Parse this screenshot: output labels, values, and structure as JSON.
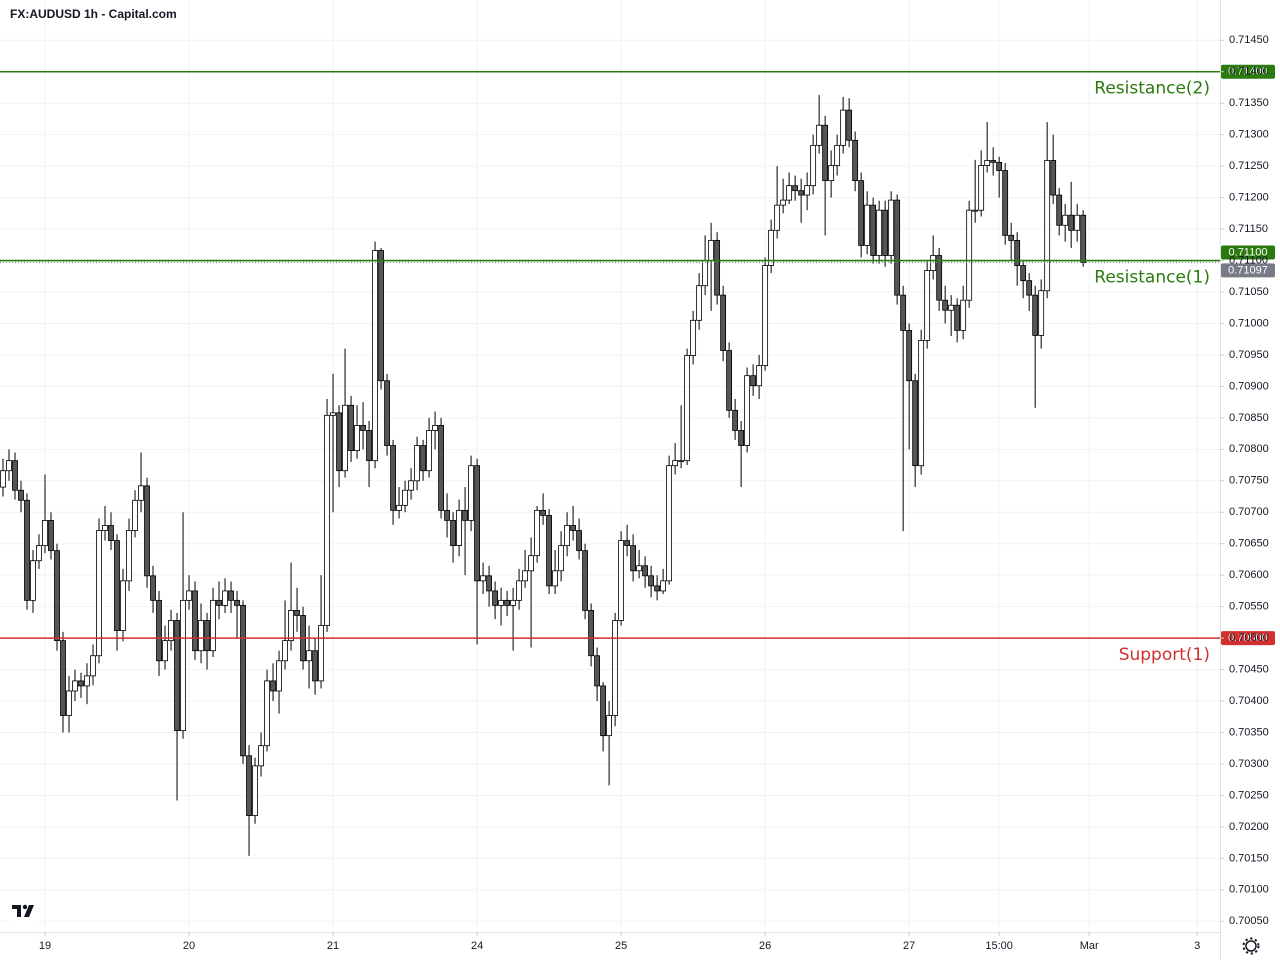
{
  "chart_data": {
    "type": "candlestick",
    "title": "FX:AUDUSD 1h - Capital.com",
    "up_color": "#ffffff",
    "down_color": "#555555",
    "wick_color": "#000000",
    "grid": true,
    "xlim": [
      -0.5,
      202.8
    ],
    "ylim": [
      0.70033,
      0.71514
    ],
    "xticks": [
      {
        "value": 7,
        "label": "19"
      },
      {
        "value": 31,
        "label": "20"
      },
      {
        "value": 55,
        "label": "21"
      },
      {
        "value": 79,
        "label": "24"
      },
      {
        "value": 103,
        "label": "25"
      },
      {
        "value": 127,
        "label": "26"
      },
      {
        "value": 151,
        "label": "27"
      },
      {
        "value": 166,
        "label": "15:00"
      },
      {
        "value": 181,
        "label": "Mar"
      },
      {
        "value": 199,
        "label": "3"
      }
    ],
    "yticks": [
      {
        "value": 0.7005,
        "label": "0.70050"
      },
      {
        "value": 0.701,
        "label": "0.70100"
      },
      {
        "value": 0.7015,
        "label": "0.70150"
      },
      {
        "value": 0.702,
        "label": "0.70200"
      },
      {
        "value": 0.7025,
        "label": "0.70250"
      },
      {
        "value": 0.703,
        "label": "0.70300"
      },
      {
        "value": 0.7035,
        "label": "0.70350"
      },
      {
        "value": 0.704,
        "label": "0.70400"
      },
      {
        "value": 0.7045,
        "label": "0.70450"
      },
      {
        "value": 0.705,
        "label": "0.70500"
      },
      {
        "value": 0.7055,
        "label": "0.70550"
      },
      {
        "value": 0.706,
        "label": "0.70600"
      },
      {
        "value": 0.7065,
        "label": "0.70650"
      },
      {
        "value": 0.707,
        "label": "0.70700"
      },
      {
        "value": 0.7075,
        "label": "0.70750"
      },
      {
        "value": 0.708,
        "label": "0.70800"
      },
      {
        "value": 0.7085,
        "label": "0.70850"
      },
      {
        "value": 0.709,
        "label": "0.70900"
      },
      {
        "value": 0.7095,
        "label": "0.70950"
      },
      {
        "value": 0.71,
        "label": "0.71000"
      },
      {
        "value": 0.7105,
        "label": "0.71050"
      },
      {
        "value": 0.711,
        "label": "0.71100"
      },
      {
        "value": 0.7115,
        "label": "0.71150"
      },
      {
        "value": 0.712,
        "label": "0.71200"
      },
      {
        "value": 0.7125,
        "label": "0.71250"
      },
      {
        "value": 0.713,
        "label": "0.71300"
      },
      {
        "value": 0.7135,
        "label": "0.71350"
      },
      {
        "value": 0.714,
        "label": "0.71400"
      },
      {
        "value": 0.7145,
        "label": "0.71450"
      }
    ],
    "levels": [
      {
        "name": "Resistance(2)",
        "value": 0.714,
        "value_label": "0.71400",
        "color": "#2a7a0e"
      },
      {
        "name": "Resistance(1)",
        "value": 0.711,
        "value_label": "0.71100",
        "color": "#2a7a0e"
      },
      {
        "name": "Support(1)",
        "value": 0.705,
        "value_label": "0.70500",
        "color": "#d32f2f"
      }
    ],
    "last_label": "0.71097",
    "ohlc": [
      [
        0.7074,
        0.70785,
        0.70725,
        0.70766
      ],
      [
        0.70766,
        0.708,
        0.7075,
        0.70782
      ],
      [
        0.70782,
        0.70795,
        0.7072,
        0.70735
      ],
      [
        0.70735,
        0.7075,
        0.707,
        0.70719
      ],
      [
        0.70719,
        0.7073,
        0.70545,
        0.7056
      ],
      [
        0.7056,
        0.7064,
        0.7054,
        0.70623
      ],
      [
        0.70623,
        0.70665,
        0.7061,
        0.70647
      ],
      [
        0.70647,
        0.7076,
        0.70635,
        0.70687
      ],
      [
        0.70687,
        0.707,
        0.70625,
        0.70639
      ],
      [
        0.70639,
        0.7065,
        0.7048,
        0.70496
      ],
      [
        0.70496,
        0.7051,
        0.7035,
        0.70377
      ],
      [
        0.70377,
        0.7044,
        0.7035,
        0.70416
      ],
      [
        0.70416,
        0.7045,
        0.704,
        0.70432
      ],
      [
        0.70432,
        0.70445,
        0.70405,
        0.70424
      ],
      [
        0.70424,
        0.7046,
        0.70395,
        0.7044
      ],
      [
        0.7044,
        0.7049,
        0.70425,
        0.70472
      ],
      [
        0.70472,
        0.7069,
        0.7046,
        0.70671
      ],
      [
        0.70671,
        0.7071,
        0.70655,
        0.70679
      ],
      [
        0.70679,
        0.707,
        0.7064,
        0.70655
      ],
      [
        0.70655,
        0.70665,
        0.7048,
        0.70512
      ],
      [
        0.70512,
        0.7061,
        0.70495,
        0.70591
      ],
      [
        0.70591,
        0.7069,
        0.70575,
        0.70671
      ],
      [
        0.70671,
        0.70735,
        0.7066,
        0.70719
      ],
      [
        0.70719,
        0.70795,
        0.707,
        0.70742
      ],
      [
        0.70742,
        0.70755,
        0.7058,
        0.70599
      ],
      [
        0.70599,
        0.70615,
        0.7054,
        0.7056
      ],
      [
        0.7056,
        0.70575,
        0.7044,
        0.70464
      ],
      [
        0.70464,
        0.7052,
        0.7045,
        0.70496
      ],
      [
        0.70496,
        0.70545,
        0.7048,
        0.70528
      ],
      [
        0.70528,
        0.7054,
        0.70242,
        0.70353
      ],
      [
        0.70353,
        0.707,
        0.7034,
        0.7056
      ],
      [
        0.7056,
        0.706,
        0.70545,
        0.70575
      ],
      [
        0.70575,
        0.7059,
        0.70465,
        0.7048
      ],
      [
        0.7048,
        0.70555,
        0.7046,
        0.70528
      ],
      [
        0.70528,
        0.7054,
        0.7045,
        0.7048
      ],
      [
        0.7048,
        0.7058,
        0.7047,
        0.7056
      ],
      [
        0.7056,
        0.7059,
        0.7053,
        0.70552
      ],
      [
        0.70552,
        0.70595,
        0.7054,
        0.70575
      ],
      [
        0.70575,
        0.7059,
        0.7054,
        0.7056
      ],
      [
        0.7056,
        0.70575,
        0.705,
        0.70552
      ],
      [
        0.70552,
        0.7056,
        0.703,
        0.70313
      ],
      [
        0.70313,
        0.7033,
        0.70154,
        0.70218
      ],
      [
        0.70218,
        0.7031,
        0.70205,
        0.70297
      ],
      [
        0.70297,
        0.7035,
        0.7028,
        0.70329
      ],
      [
        0.70329,
        0.7045,
        0.7032,
        0.70432
      ],
      [
        0.70432,
        0.7046,
        0.704,
        0.70416
      ],
      [
        0.70416,
        0.7048,
        0.7038,
        0.70464
      ],
      [
        0.70464,
        0.7056,
        0.7045,
        0.70496
      ],
      [
        0.70496,
        0.7062,
        0.7048,
        0.70544
      ],
      [
        0.70544,
        0.7058,
        0.7051,
        0.70536
      ],
      [
        0.70536,
        0.7055,
        0.7045,
        0.70464
      ],
      [
        0.70464,
        0.7052,
        0.7042,
        0.7048
      ],
      [
        0.7048,
        0.705,
        0.7041,
        0.70432
      ],
      [
        0.70432,
        0.706,
        0.7042,
        0.7052
      ],
      [
        0.7052,
        0.7088,
        0.7051,
        0.70854
      ],
      [
        0.70854,
        0.7092,
        0.707,
        0.70858
      ],
      [
        0.70858,
        0.7087,
        0.7074,
        0.70766
      ],
      [
        0.70766,
        0.7096,
        0.70755,
        0.7087
      ],
      [
        0.7087,
        0.70885,
        0.7078,
        0.70798
      ],
      [
        0.70798,
        0.7087,
        0.70785,
        0.70838
      ],
      [
        0.70838,
        0.70875,
        0.708,
        0.7083
      ],
      [
        0.7083,
        0.70845,
        0.7074,
        0.70782
      ],
      [
        0.70782,
        0.7113,
        0.7077,
        0.71116
      ],
      [
        0.71116,
        0.7112,
        0.70895,
        0.70909
      ],
      [
        0.70909,
        0.7092,
        0.7079,
        0.70806
      ],
      [
        0.70806,
        0.70815,
        0.7068,
        0.70703
      ],
      [
        0.70703,
        0.7074,
        0.7069,
        0.70711
      ],
      [
        0.70711,
        0.7075,
        0.707,
        0.70735
      ],
      [
        0.70735,
        0.7077,
        0.7072,
        0.7075
      ],
      [
        0.7075,
        0.7082,
        0.70735,
        0.70806
      ],
      [
        0.70806,
        0.70815,
        0.7075,
        0.70766
      ],
      [
        0.70766,
        0.7085,
        0.70755,
        0.7083
      ],
      [
        0.7083,
        0.7086,
        0.708,
        0.70838
      ],
      [
        0.70838,
        0.7085,
        0.7069,
        0.70703
      ],
      [
        0.70703,
        0.7073,
        0.7066,
        0.70687
      ],
      [
        0.70687,
        0.707,
        0.7062,
        0.70647
      ],
      [
        0.70647,
        0.7072,
        0.7063,
        0.70703
      ],
      [
        0.70703,
        0.7074,
        0.706,
        0.70687
      ],
      [
        0.70687,
        0.7079,
        0.7067,
        0.70774
      ],
      [
        0.70774,
        0.70785,
        0.7049,
        0.70591
      ],
      [
        0.70591,
        0.7062,
        0.7057,
        0.70599
      ],
      [
        0.70599,
        0.70615,
        0.7055,
        0.70575
      ],
      [
        0.70575,
        0.7059,
        0.7053,
        0.70552
      ],
      [
        0.70552,
        0.7058,
        0.7052,
        0.7056
      ],
      [
        0.7056,
        0.70575,
        0.70535,
        0.70552
      ],
      [
        0.70552,
        0.7058,
        0.7048,
        0.7056
      ],
      [
        0.7056,
        0.7061,
        0.70545,
        0.70591
      ],
      [
        0.70591,
        0.7064,
        0.7058,
        0.70607
      ],
      [
        0.70607,
        0.7066,
        0.70485,
        0.70631
      ],
      [
        0.70631,
        0.7071,
        0.7062,
        0.70703
      ],
      [
        0.70703,
        0.7073,
        0.7068,
        0.70695
      ],
      [
        0.70695,
        0.70705,
        0.7057,
        0.70583
      ],
      [
        0.70583,
        0.7064,
        0.7057,
        0.70607
      ],
      [
        0.70607,
        0.7067,
        0.7059,
        0.70647
      ],
      [
        0.70647,
        0.707,
        0.7063,
        0.70679
      ],
      [
        0.70679,
        0.7071,
        0.70655,
        0.70671
      ],
      [
        0.70671,
        0.7069,
        0.70625,
        0.70639
      ],
      [
        0.70639,
        0.7065,
        0.7053,
        0.70544
      ],
      [
        0.70544,
        0.70555,
        0.70455,
        0.70472
      ],
      [
        0.70472,
        0.70485,
        0.704,
        0.70424
      ],
      [
        0.70424,
        0.7043,
        0.7032,
        0.70345
      ],
      [
        0.70345,
        0.704,
        0.70266,
        0.70377
      ],
      [
        0.70377,
        0.7054,
        0.7036,
        0.70528
      ],
      [
        0.70528,
        0.7067,
        0.7052,
        0.70655
      ],
      [
        0.70655,
        0.7068,
        0.7063,
        0.70647
      ],
      [
        0.70647,
        0.70665,
        0.7059,
        0.70607
      ],
      [
        0.70607,
        0.7064,
        0.70595,
        0.70615
      ],
      [
        0.70615,
        0.7063,
        0.7058,
        0.70599
      ],
      [
        0.70599,
        0.70615,
        0.70565,
        0.70583
      ],
      [
        0.70583,
        0.706,
        0.7056,
        0.70575
      ],
      [
        0.70575,
        0.7061,
        0.7057,
        0.70591
      ],
      [
        0.70591,
        0.7079,
        0.70585,
        0.70774
      ],
      [
        0.70774,
        0.7081,
        0.7076,
        0.70782
      ],
      [
        0.70782,
        0.7087,
        0.7077,
        0.70782
      ],
      [
        0.70782,
        0.7096,
        0.70775,
        0.70949
      ],
      [
        0.70949,
        0.7102,
        0.70935,
        0.71005
      ],
      [
        0.71005,
        0.7108,
        0.7099,
        0.7106
      ],
      [
        0.7106,
        0.7114,
        0.71045,
        0.711
      ],
      [
        0.711,
        0.7116,
        0.7102,
        0.71132
      ],
      [
        0.71132,
        0.71145,
        0.7103,
        0.71045
      ],
      [
        0.71045,
        0.7106,
        0.7094,
        0.70957
      ],
      [
        0.70957,
        0.7097,
        0.7085,
        0.70862
      ],
      [
        0.70862,
        0.7088,
        0.70815,
        0.7083
      ],
      [
        0.7083,
        0.70845,
        0.7074,
        0.70806
      ],
      [
        0.70806,
        0.7093,
        0.70795,
        0.70917
      ],
      [
        0.70917,
        0.70935,
        0.70885,
        0.70901
      ],
      [
        0.70901,
        0.7095,
        0.7088,
        0.70933
      ],
      [
        0.70933,
        0.71105,
        0.70925,
        0.71092
      ],
      [
        0.71092,
        0.71165,
        0.7108,
        0.71148
      ],
      [
        0.71148,
        0.7125,
        0.71135,
        0.71188
      ],
      [
        0.71188,
        0.7123,
        0.71175,
        0.71196
      ],
      [
        0.71196,
        0.7124,
        0.7119,
        0.71219
      ],
      [
        0.71219,
        0.71235,
        0.71195,
        0.71211
      ],
      [
        0.71211,
        0.7123,
        0.7116,
        0.71204
      ],
      [
        0.71204,
        0.7124,
        0.7118,
        0.71219
      ],
      [
        0.71219,
        0.713,
        0.71205,
        0.71283
      ],
      [
        0.71283,
        0.71363,
        0.7127,
        0.71315
      ],
      [
        0.71315,
        0.7133,
        0.7114,
        0.71227
      ],
      [
        0.71227,
        0.71275,
        0.712,
        0.71251
      ],
      [
        0.71251,
        0.713,
        0.71235,
        0.71283
      ],
      [
        0.71283,
        0.7136,
        0.7127,
        0.71339
      ],
      [
        0.71339,
        0.71358,
        0.7128,
        0.71291
      ],
      [
        0.71291,
        0.71305,
        0.7121,
        0.71227
      ],
      [
        0.71227,
        0.7124,
        0.71105,
        0.71124
      ],
      [
        0.71124,
        0.7121,
        0.7111,
        0.71188
      ],
      [
        0.71188,
        0.712,
        0.71095,
        0.71108
      ],
      [
        0.71108,
        0.71195,
        0.71095,
        0.7118
      ],
      [
        0.7118,
        0.71195,
        0.7109,
        0.71108
      ],
      [
        0.71108,
        0.7121,
        0.71095,
        0.71196
      ],
      [
        0.71196,
        0.71205,
        0.7103,
        0.71045
      ],
      [
        0.71045,
        0.7106,
        0.7067,
        0.70989
      ],
      [
        0.70989,
        0.71,
        0.708,
        0.70909
      ],
      [
        0.70909,
        0.7092,
        0.7074,
        0.70774
      ],
      [
        0.70774,
        0.7099,
        0.7076,
        0.70973
      ],
      [
        0.70973,
        0.711,
        0.7096,
        0.71084
      ],
      [
        0.71084,
        0.7114,
        0.7107,
        0.71108
      ],
      [
        0.71108,
        0.7112,
        0.7102,
        0.71037
      ],
      [
        0.71037,
        0.7106,
        0.71,
        0.71021
      ],
      [
        0.71021,
        0.71045,
        0.7098,
        0.71029
      ],
      [
        0.71029,
        0.7104,
        0.7097,
        0.70989
      ],
      [
        0.70989,
        0.7106,
        0.70975,
        0.71037
      ],
      [
        0.71037,
        0.71195,
        0.71025,
        0.7118
      ],
      [
        0.7118,
        0.7126,
        0.7116,
        0.7118
      ],
      [
        0.7118,
        0.71275,
        0.7117,
        0.71251
      ],
      [
        0.71251,
        0.7132,
        0.7124,
        0.71259
      ],
      [
        0.71259,
        0.7128,
        0.71235,
        0.71256
      ],
      [
        0.71256,
        0.71265,
        0.712,
        0.71243
      ],
      [
        0.71243,
        0.71255,
        0.71125,
        0.7114
      ],
      [
        0.7114,
        0.7116,
        0.711,
        0.71132
      ],
      [
        0.71132,
        0.71145,
        0.7106,
        0.71092
      ],
      [
        0.71092,
        0.711,
        0.7104,
        0.71068
      ],
      [
        0.71068,
        0.7108,
        0.7102,
        0.71045
      ],
      [
        0.71045,
        0.7106,
        0.70866,
        0.70981
      ],
      [
        0.70981,
        0.7107,
        0.7096,
        0.71052
      ],
      [
        0.71052,
        0.7132,
        0.7104,
        0.71259
      ],
      [
        0.71259,
        0.713,
        0.7119,
        0.71204
      ],
      [
        0.71204,
        0.71215,
        0.7114,
        0.71156
      ],
      [
        0.71156,
        0.7119,
        0.7113,
        0.71172
      ],
      [
        0.71172,
        0.71225,
        0.7112,
        0.71148
      ],
      [
        0.71148,
        0.7119,
        0.7113,
        0.71172
      ],
      [
        0.71172,
        0.7118,
        0.7109,
        0.71097
      ]
    ]
  }
}
